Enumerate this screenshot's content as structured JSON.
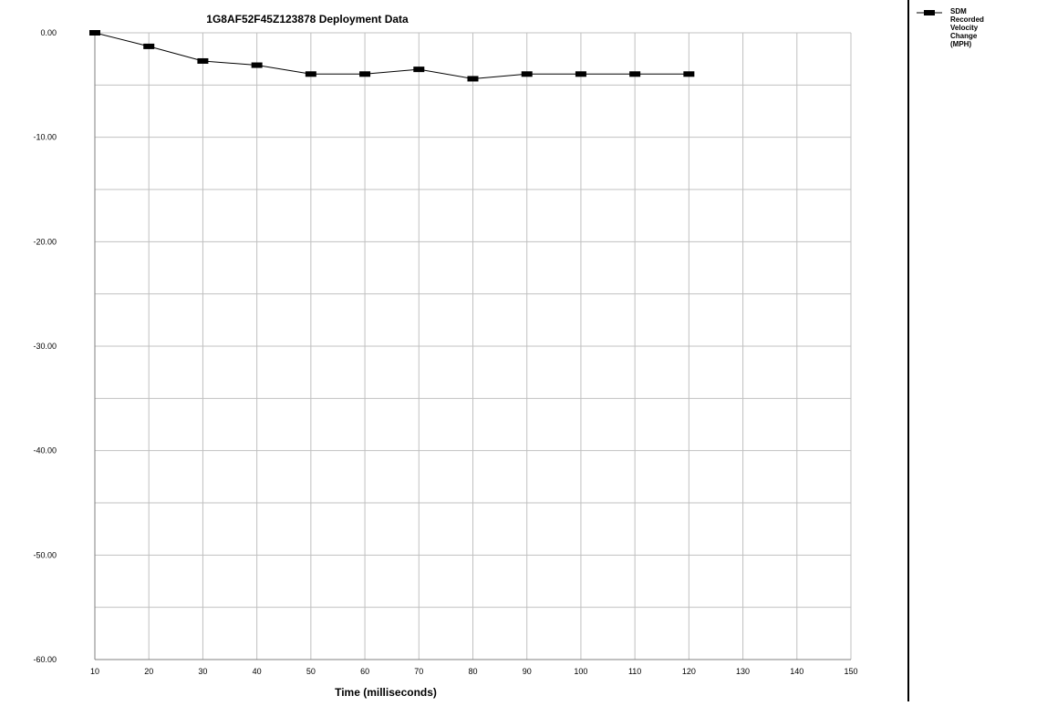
{
  "chart_data": {
    "type": "line",
    "title": "1G8AF52F45Z123878  Deployment Data",
    "xlabel": "Time (milliseconds)",
    "ylabel": "",
    "xlim": [
      10,
      150
    ],
    "ylim": [
      -60,
      0
    ],
    "x_ticks": [
      10,
      20,
      30,
      40,
      50,
      60,
      70,
      80,
      90,
      100,
      110,
      120,
      130,
      140,
      150
    ],
    "y_ticks": [
      0,
      -10,
      -20,
      -30,
      -40,
      -50,
      -60
    ],
    "y_tick_labels": [
      "0.00",
      "-10.00",
      "-20.00",
      "-30.00",
      "-40.00",
      "-50.00",
      "-60.00"
    ],
    "y_minor_gridlines": [
      -5,
      -15,
      -25,
      -35,
      -45,
      -55
    ],
    "grid": true,
    "legend_position": "right",
    "series": [
      {
        "name": "SDM Recorded Velocity Change (MPH)",
        "legend_lines": [
          "SDM",
          "Recorded",
          "Velocity",
          "Change",
          "(MPH)"
        ],
        "marker": "square",
        "color": "#000000",
        "x": [
          10,
          20,
          30,
          40,
          50,
          60,
          70,
          80,
          90,
          100,
          110,
          120
        ],
        "y": [
          0.0,
          -1.3,
          -2.7,
          -3.1,
          -3.95,
          -3.95,
          -3.5,
          -4.4,
          -3.95,
          -3.95,
          -3.95,
          -3.95
        ]
      }
    ]
  },
  "colors": {
    "grid": "#c0c0c0",
    "axis": "#808080",
    "line": "#000000",
    "divider": "#000000"
  }
}
